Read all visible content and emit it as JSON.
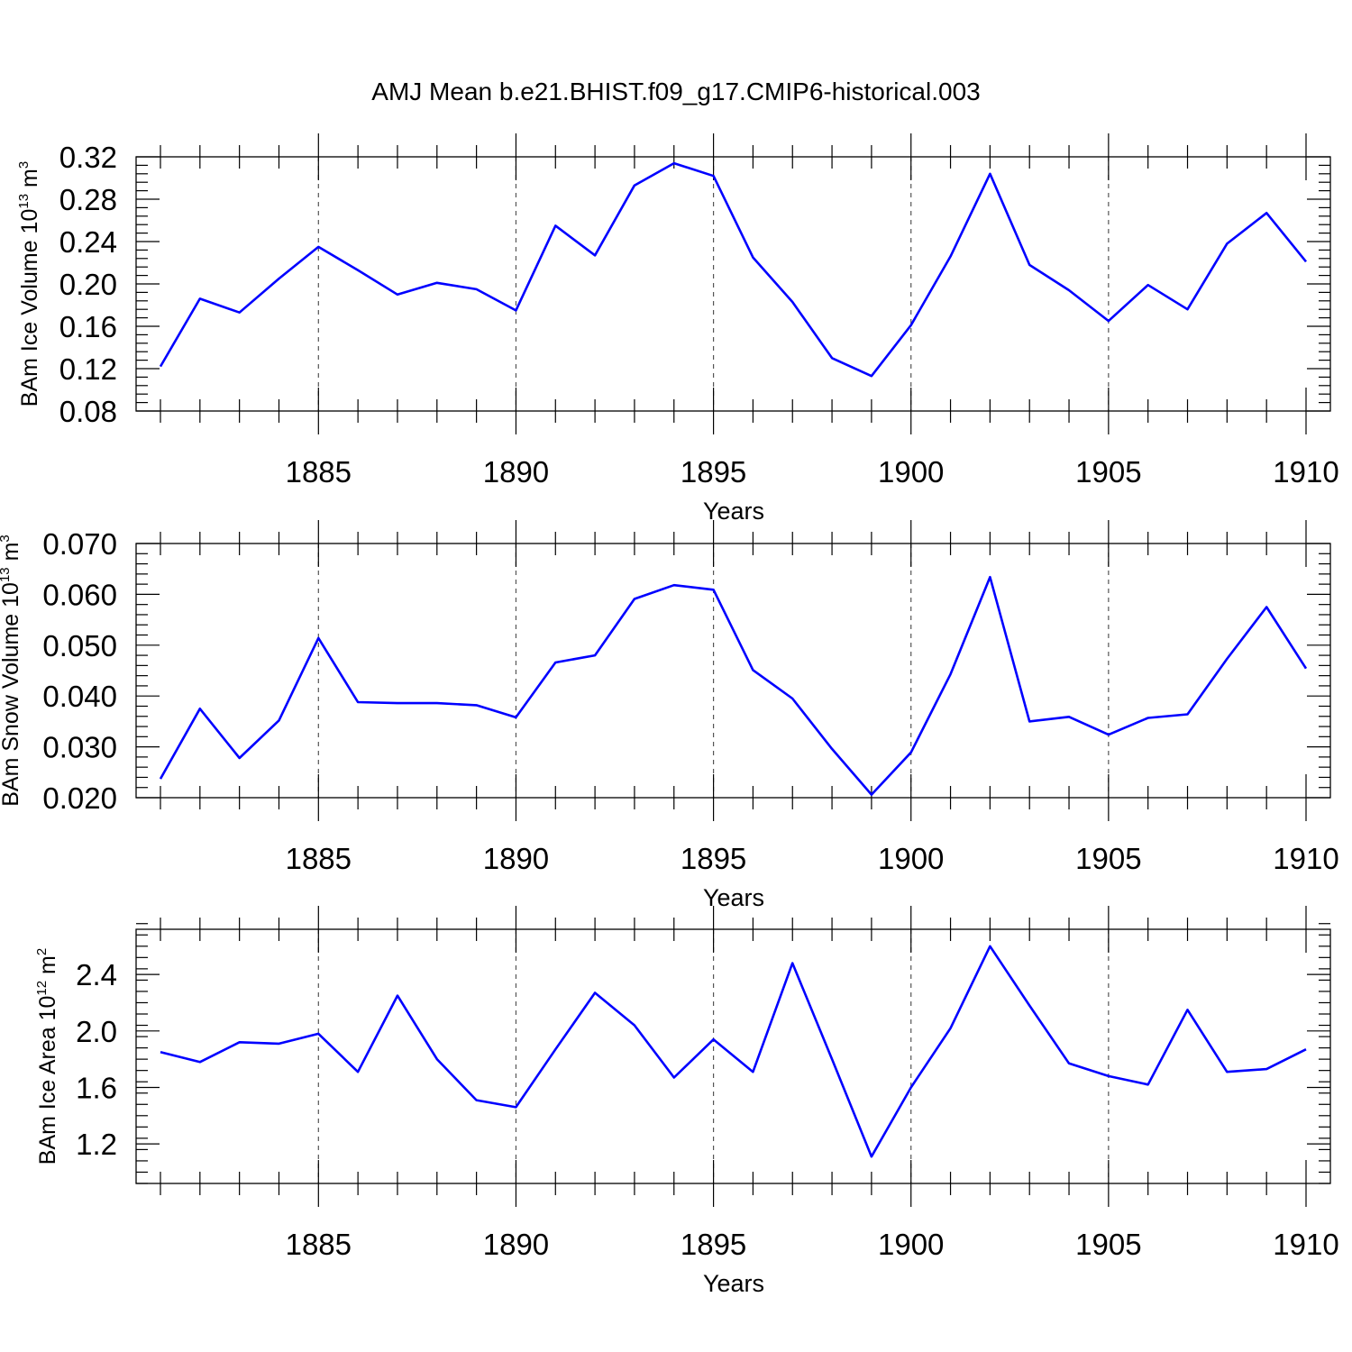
{
  "figure": {
    "title": "AMJ Mean b.e21.BHIST.f09_g17.CMIP6-historical.003"
  },
  "chart_data": [
    {
      "type": "line",
      "xlabel": "Years",
      "ylabel": {
        "prefix": "BAm Ice Volume 10",
        "sup": "13",
        "suffix": " m",
        "sup2": "3"
      },
      "xlim": [
        1881,
        1910
      ],
      "ylim": [
        0.08,
        0.32
      ],
      "xticks": [
        1885,
        1890,
        1895,
        1900,
        1905,
        1910
      ],
      "xtick_labels": [
        "1885",
        "1890",
        "1895",
        "1900",
        "1905",
        "1910"
      ],
      "yticks": [
        0.08,
        0.12,
        0.16,
        0.2,
        0.24,
        0.28,
        0.32
      ],
      "ytick_labels": [
        "0.08",
        "0.12",
        "0.16",
        "0.20",
        "0.24",
        "0.28",
        "0.32"
      ],
      "y_minor_step": 0.008,
      "grid_x": true,
      "series": [
        {
          "color": "#0000ff",
          "x": [
            1881,
            1882,
            1883,
            1884,
            1885,
            1886,
            1887,
            1888,
            1889,
            1890,
            1891,
            1892,
            1893,
            1894,
            1895,
            1896,
            1897,
            1898,
            1899,
            1900,
            1901,
            1902,
            1903,
            1904,
            1905,
            1906,
            1907,
            1908,
            1909,
            1910
          ],
          "y": [
            0.122,
            0.186,
            0.173,
            0.205,
            0.235,
            0.213,
            0.19,
            0.201,
            0.195,
            0.175,
            0.255,
            0.227,
            0.293,
            0.314,
            0.302,
            0.225,
            0.183,
            0.13,
            0.113,
            0.161,
            0.226,
            0.304,
            0.218,
            0.194,
            0.165,
            0.199,
            0.176,
            0.238,
            0.267,
            0.221
          ]
        }
      ]
    },
    {
      "type": "line",
      "xlabel": "Years",
      "ylabel": {
        "prefix": "BAm Snow Volume 10",
        "sup": "13",
        "suffix": " m",
        "sup2": "3"
      },
      "xlim": [
        1881,
        1910
      ],
      "ylim": [
        0.02,
        0.07
      ],
      "xticks": [
        1885,
        1890,
        1895,
        1900,
        1905,
        1910
      ],
      "xtick_labels": [
        "1885",
        "1890",
        "1895",
        "1900",
        "1905",
        "1910"
      ],
      "yticks": [
        0.02,
        0.03,
        0.04,
        0.05,
        0.06,
        0.07
      ],
      "ytick_labels": [
        "0.020",
        "0.030",
        "0.040",
        "0.050",
        "0.060",
        "0.070"
      ],
      "y_minor_step": 0.002,
      "grid_x": true,
      "series": [
        {
          "color": "#0000ff",
          "x": [
            1881,
            1882,
            1883,
            1884,
            1885,
            1886,
            1887,
            1888,
            1889,
            1890,
            1891,
            1892,
            1893,
            1894,
            1895,
            1896,
            1897,
            1898,
            1899,
            1900,
            1901,
            1902,
            1903,
            1904,
            1905,
            1906,
            1907,
            1908,
            1909,
            1910
          ],
          "y": [
            0.0237,
            0.0375,
            0.0278,
            0.0352,
            0.0514,
            0.0388,
            0.0386,
            0.0386,
            0.0382,
            0.0358,
            0.0466,
            0.048,
            0.0591,
            0.0618,
            0.0609,
            0.0451,
            0.0395,
            0.0296,
            0.0206,
            0.0289,
            0.0443,
            0.0634,
            0.035,
            0.0359,
            0.0324,
            0.0357,
            0.0364,
            0.0473,
            0.0575,
            0.0454
          ]
        }
      ]
    },
    {
      "type": "line",
      "xlabel": "Years",
      "ylabel": {
        "prefix": "BAm Ice Area 10",
        "sup": "12",
        "suffix": " m",
        "sup2": "2"
      },
      "xlim": [
        1881,
        1910
      ],
      "ylim": [
        0.92,
        2.72
      ],
      "xticks": [
        1885,
        1890,
        1895,
        1900,
        1905,
        1910
      ],
      "xtick_labels": [
        "1885",
        "1890",
        "1895",
        "1900",
        "1905",
        "1910"
      ],
      "yticks": [
        1.2,
        1.6,
        2.0,
        2.4
      ],
      "ytick_labels": [
        "1.2",
        "1.6",
        "2.0",
        "2.4"
      ],
      "y_minor_step": 0.08,
      "grid_x": true,
      "series": [
        {
          "color": "#0000ff",
          "x": [
            1881,
            1882,
            1883,
            1884,
            1885,
            1886,
            1887,
            1888,
            1889,
            1890,
            1891,
            1892,
            1893,
            1894,
            1895,
            1896,
            1897,
            1898,
            1899,
            1900,
            1901,
            1902,
            1903,
            1904,
            1905,
            1906,
            1907,
            1908,
            1909,
            1910
          ],
          "y": [
            1.85,
            1.78,
            1.92,
            1.91,
            1.98,
            1.71,
            2.25,
            1.8,
            1.51,
            1.46,
            1.87,
            2.27,
            2.04,
            1.67,
            1.94,
            1.71,
            2.48,
            1.8,
            1.11,
            1.6,
            2.02,
            2.6,
            2.18,
            1.77,
            1.68,
            1.62,
            2.15,
            1.71,
            1.73,
            1.87
          ]
        }
      ]
    }
  ]
}
